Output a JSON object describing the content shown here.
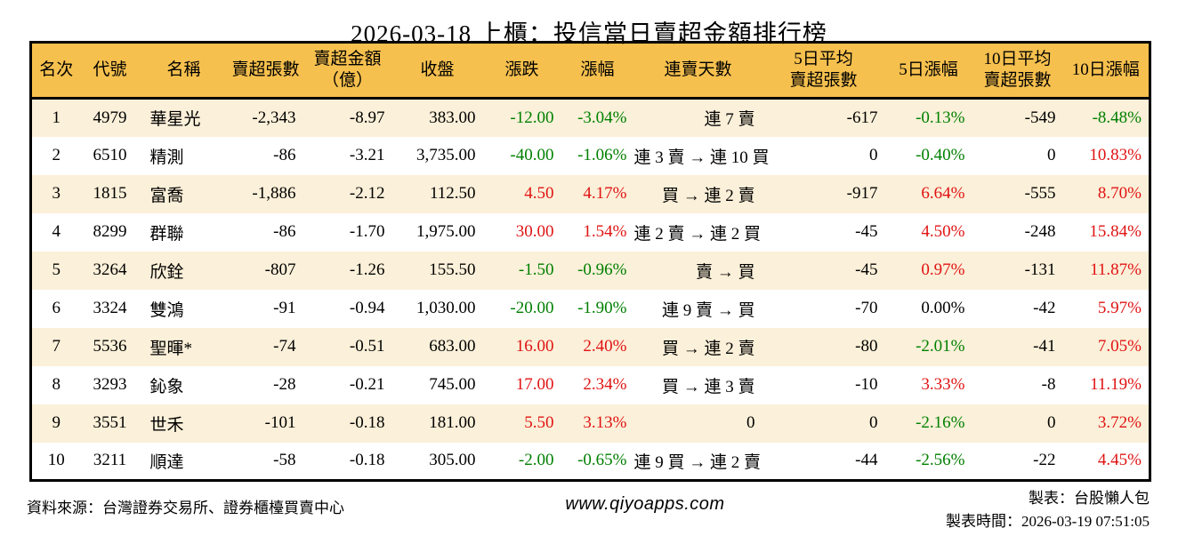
{
  "title": "2026-03-18 上櫃：投信當日賣超金額排行榜",
  "colors": {
    "header_bg": "#F6C04E",
    "row_odd_bg": "#FBF0D9",
    "row_even_bg": "#FFFFFF",
    "up_red": "#E01313",
    "down_green": "#008000",
    "border": "#000000"
  },
  "table": {
    "columns": [
      {
        "key": "rank",
        "label": "名次"
      },
      {
        "key": "code",
        "label": "代號"
      },
      {
        "key": "name",
        "label": "名稱"
      },
      {
        "key": "sell_shares",
        "label": "賣超張數"
      },
      {
        "key": "sell_amount",
        "label": "賣超金額\n（億）"
      },
      {
        "key": "close",
        "label": "收盤"
      },
      {
        "key": "change",
        "label": "漲跌"
      },
      {
        "key": "change_pct",
        "label": "漲幅"
      },
      {
        "key": "streak",
        "label": "連賣天數"
      },
      {
        "key": "avg5",
        "label": "5日平均\n賣超張數"
      },
      {
        "key": "pct5",
        "label": "5日漲幅"
      },
      {
        "key": "avg10",
        "label": "10日平均\n賣超張數"
      },
      {
        "key": "pct10",
        "label": "10日漲幅"
      }
    ],
    "rows": [
      {
        "rank": "1",
        "code": "4979",
        "name": "華星光",
        "sell_shares": "-2,343",
        "sell_amount": "-8.97",
        "close": "383.00",
        "change": {
          "v": "-12.00",
          "s": "down"
        },
        "change_pct": {
          "v": "-3.04%",
          "s": "down"
        },
        "streak": "連 7 賣",
        "avg5": "-617",
        "pct5": {
          "v": "-0.13%",
          "s": "down"
        },
        "avg10": "-549",
        "pct10": {
          "v": "-8.48%",
          "s": "down"
        }
      },
      {
        "rank": "2",
        "code": "6510",
        "name": "精測",
        "sell_shares": "-86",
        "sell_amount": "-3.21",
        "close": "3,735.00",
        "change": {
          "v": "-40.00",
          "s": "down"
        },
        "change_pct": {
          "v": "-1.06%",
          "s": "down"
        },
        "streak": "連 3 賣 → 連 10 買",
        "avg5": "0",
        "pct5": {
          "v": "-0.40%",
          "s": "down"
        },
        "avg10": "0",
        "pct10": {
          "v": "10.83%",
          "s": "up"
        }
      },
      {
        "rank": "3",
        "code": "1815",
        "name": "富喬",
        "sell_shares": "-1,886",
        "sell_amount": "-2.12",
        "close": "112.50",
        "change": {
          "v": "4.50",
          "s": "up"
        },
        "change_pct": {
          "v": "4.17%",
          "s": "up"
        },
        "streak": "買 → 連 2 賣",
        "avg5": "-917",
        "pct5": {
          "v": "6.64%",
          "s": "up"
        },
        "avg10": "-555",
        "pct10": {
          "v": "8.70%",
          "s": "up"
        }
      },
      {
        "rank": "4",
        "code": "8299",
        "name": "群聯",
        "sell_shares": "-86",
        "sell_amount": "-1.70",
        "close": "1,975.00",
        "change": {
          "v": "30.00",
          "s": "up"
        },
        "change_pct": {
          "v": "1.54%",
          "s": "up"
        },
        "streak": "連 2 賣 → 連 2 買",
        "avg5": "-45",
        "pct5": {
          "v": "4.50%",
          "s": "up"
        },
        "avg10": "-248",
        "pct10": {
          "v": "15.84%",
          "s": "up"
        }
      },
      {
        "rank": "5",
        "code": "3264",
        "name": "欣銓",
        "sell_shares": "-807",
        "sell_amount": "-1.26",
        "close": "155.50",
        "change": {
          "v": "-1.50",
          "s": "down"
        },
        "change_pct": {
          "v": "-0.96%",
          "s": "down"
        },
        "streak": "賣 → 買",
        "avg5": "-45",
        "pct5": {
          "v": "0.97%",
          "s": "up"
        },
        "avg10": "-131",
        "pct10": {
          "v": "11.87%",
          "s": "up"
        }
      },
      {
        "rank": "6",
        "code": "3324",
        "name": "雙鴻",
        "sell_shares": "-91",
        "sell_amount": "-0.94",
        "close": "1,030.00",
        "change": {
          "v": "-20.00",
          "s": "down"
        },
        "change_pct": {
          "v": "-1.90%",
          "s": "down"
        },
        "streak": "連 9 賣 → 買",
        "avg5": "-70",
        "pct5": {
          "v": "0.00%",
          "s": "flat"
        },
        "avg10": "-42",
        "pct10": {
          "v": "5.97%",
          "s": "up"
        }
      },
      {
        "rank": "7",
        "code": "5536",
        "name": "聖暉*",
        "sell_shares": "-74",
        "sell_amount": "-0.51",
        "close": "683.00",
        "change": {
          "v": "16.00",
          "s": "up"
        },
        "change_pct": {
          "v": "2.40%",
          "s": "up"
        },
        "streak": "買 → 連 2 賣",
        "avg5": "-80",
        "pct5": {
          "v": "-2.01%",
          "s": "down"
        },
        "avg10": "-41",
        "pct10": {
          "v": "7.05%",
          "s": "up"
        }
      },
      {
        "rank": "8",
        "code": "3293",
        "name": "鈊象",
        "sell_shares": "-28",
        "sell_amount": "-0.21",
        "close": "745.00",
        "change": {
          "v": "17.00",
          "s": "up"
        },
        "change_pct": {
          "v": "2.34%",
          "s": "up"
        },
        "streak": "買 → 連 3 賣",
        "avg5": "-10",
        "pct5": {
          "v": "3.33%",
          "s": "up"
        },
        "avg10": "-8",
        "pct10": {
          "v": "11.19%",
          "s": "up"
        }
      },
      {
        "rank": "9",
        "code": "3551",
        "name": "世禾",
        "sell_shares": "-101",
        "sell_amount": "-0.18",
        "close": "181.00",
        "change": {
          "v": "5.50",
          "s": "up"
        },
        "change_pct": {
          "v": "3.13%",
          "s": "up"
        },
        "streak": "0",
        "avg5": "0",
        "pct5": {
          "v": "-2.16%",
          "s": "down"
        },
        "avg10": "0",
        "pct10": {
          "v": "3.72%",
          "s": "up"
        }
      },
      {
        "rank": "10",
        "code": "3211",
        "name": "順達",
        "sell_shares": "-58",
        "sell_amount": "-0.18",
        "close": "305.00",
        "change": {
          "v": "-2.00",
          "s": "down"
        },
        "change_pct": {
          "v": "-0.65%",
          "s": "down"
        },
        "streak": "連 9 買 → 連 2 賣",
        "avg5": "-44",
        "pct5": {
          "v": "-2.56%",
          "s": "down"
        },
        "avg10": "-22",
        "pct10": {
          "v": "4.45%",
          "s": "up"
        }
      }
    ]
  },
  "footer": {
    "source": "資料來源：台灣證券交易所、證券櫃檯買賣中心",
    "website": "www.qiyoapps.com",
    "made_by": "製表：台股懶人包",
    "made_time": "製表時間：2026-03-19 07:51:05"
  }
}
